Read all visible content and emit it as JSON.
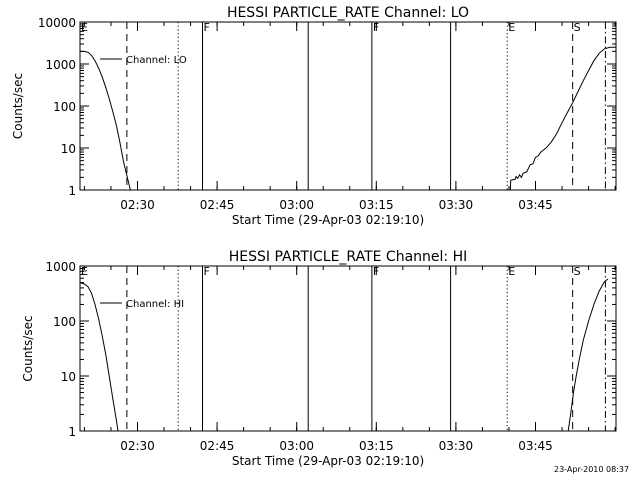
{
  "chart_data": [
    {
      "type": "line",
      "title": "HESSI PARTICLE_RATE Channel: LO",
      "xlabel": "Start Time (29-Apr-03 02:19:10)",
      "ylabel": "Counts/sec",
      "ylog": true,
      "ylim": [
        1,
        10000
      ],
      "xlim": [
        "02:19:10",
        "04:00:10"
      ],
      "xticks": [
        "02:30",
        "02:45",
        "03:00",
        "03:15",
        "03:30",
        "03:45"
      ],
      "yticks": [
        "1",
        "10",
        "100",
        "1000",
        "10000"
      ],
      "legend": {
        "label": "Channel: LO",
        "placement": "top-left"
      },
      "markers": [
        {
          "label": "E",
          "time": "02:19:10",
          "style": "none"
        },
        {
          "label": "",
          "time": "02:28:00",
          "style": "dashed"
        },
        {
          "label": "",
          "time": "02:37:40",
          "style": "dotted"
        },
        {
          "label": "F",
          "time": "02:42:15",
          "style": "solid"
        },
        {
          "label": "",
          "time": "03:02:10",
          "style": "solid"
        },
        {
          "label": "F",
          "time": "03:14:10",
          "style": "solid"
        },
        {
          "label": "",
          "time": "03:29:00",
          "style": "solid"
        },
        {
          "label": "E",
          "time": "03:39:40",
          "style": "dotted"
        },
        {
          "label": "S",
          "time": "03:52:00",
          "style": "dashed"
        },
        {
          "label": "",
          "time": "03:58:10",
          "style": "dashdot"
        }
      ],
      "series": [
        {
          "segments": [
            [
              [
                "02:19:10",
                2000
              ],
              [
                "02:20:00",
                2000
              ],
              [
                "02:20:40",
                1900
              ],
              [
                "02:21:20",
                1600
              ],
              [
                "02:22:00",
                1200
              ],
              [
                "02:22:40",
                800
              ],
              [
                "02:23:20",
                500
              ],
              [
                "02:24:00",
                280
              ],
              [
                "02:24:40",
                150
              ],
              [
                "02:25:20",
                75
              ],
              [
                "02:26:00",
                35
              ],
              [
                "02:26:40",
                14
              ],
              [
                "02:27:20",
                5
              ],
              [
                "02:28:00",
                2.2
              ],
              [
                "02:28:40",
                1
              ]
            ],
            [
              [
                "03:40:15",
                1
              ],
              [
                "03:40:20",
                1.7
              ],
              [
                "03:41:10",
                1.8
              ],
              [
                "03:41:20",
                2.1
              ],
              [
                "03:41:40",
                1.9
              ],
              [
                "03:42:00",
                2.3
              ],
              [
                "03:42:20",
                2
              ],
              [
                "03:42:40",
                2.5
              ],
              [
                "03:43:20",
                2.7
              ],
              [
                "03:44:00",
                4
              ],
              [
                "03:44:30",
                4.2
              ],
              [
                "03:45:00",
                6
              ],
              [
                "03:45:30",
                6.5
              ],
              [
                "03:46:00",
                8
              ],
              [
                "03:47:00",
                10
              ],
              [
                "03:48:00",
                14
              ],
              [
                "03:49:00",
                22
              ],
              [
                "03:50:00",
                40
              ],
              [
                "03:51:00",
                70
              ],
              [
                "03:52:00",
                120
              ],
              [
                "03:53:00",
                220
              ],
              [
                "03:54:00",
                400
              ],
              [
                "03:55:00",
                700
              ],
              [
                "03:56:00",
                1200
              ],
              [
                "03:57:00",
                1800
              ],
              [
                "03:58:00",
                2300
              ],
              [
                "03:59:00",
                2500
              ],
              [
                "04:00:10",
                2500
              ]
            ]
          ]
        }
      ]
    },
    {
      "type": "line",
      "title": "HESSI PARTICLE_RATE Channel: HI",
      "xlabel": "Start Time (29-Apr-03 02:19:10)",
      "ylabel": "Counts/sec",
      "ylog": true,
      "ylim": [
        1,
        1000
      ],
      "xlim": [
        "02:19:10",
        "04:00:10"
      ],
      "xticks": [
        "02:30",
        "02:45",
        "03:00",
        "03:15",
        "03:30",
        "03:45"
      ],
      "yticks": [
        "1",
        "10",
        "100",
        "1000"
      ],
      "legend": {
        "label": "Channel: HI",
        "placement": "top-left"
      },
      "markers": [
        {
          "label": "E",
          "time": "02:19:10",
          "style": "none"
        },
        {
          "label": "",
          "time": "02:28:00",
          "style": "dashed"
        },
        {
          "label": "",
          "time": "02:37:40",
          "style": "dotted"
        },
        {
          "label": "F",
          "time": "02:42:15",
          "style": "solid"
        },
        {
          "label": "",
          "time": "03:02:10",
          "style": "solid"
        },
        {
          "label": "F",
          "time": "03:14:10",
          "style": "solid"
        },
        {
          "label": "",
          "time": "03:29:00",
          "style": "solid"
        },
        {
          "label": "E",
          "time": "03:39:40",
          "style": "dotted"
        },
        {
          "label": "S",
          "time": "03:52:00",
          "style": "dashed"
        },
        {
          "label": "",
          "time": "03:58:10",
          "style": "dashdot"
        }
      ],
      "series": [
        {
          "segments": [
            [
              [
                "02:19:10",
                500
              ],
              [
                "02:20:00",
                470
              ],
              [
                "02:20:40",
                420
              ],
              [
                "02:21:20",
                320
              ],
              [
                "02:22:00",
                200
              ],
              [
                "02:22:40",
                110
              ],
              [
                "02:23:20",
                55
              ],
              [
                "02:24:00",
                25
              ],
              [
                "02:24:40",
                10
              ],
              [
                "02:25:20",
                4
              ],
              [
                "02:26:00",
                1.6
              ],
              [
                "02:26:20",
                1
              ]
            ],
            [
              [
                "03:51:10",
                1
              ],
              [
                "03:51:40",
                2.2
              ],
              [
                "03:52:10",
                5
              ],
              [
                "03:52:40",
                10
              ],
              [
                "03:53:20",
                22
              ],
              [
                "03:54:00",
                45
              ],
              [
                "03:55:00",
                100
              ],
              [
                "03:56:00",
                200
              ],
              [
                "03:57:00",
                350
              ],
              [
                "03:58:00",
                520
              ],
              [
                "03:58:40",
                580
              ]
            ]
          ]
        }
      ]
    }
  ],
  "footer": {
    "timestamp": "23-Apr-2010 08:37"
  }
}
